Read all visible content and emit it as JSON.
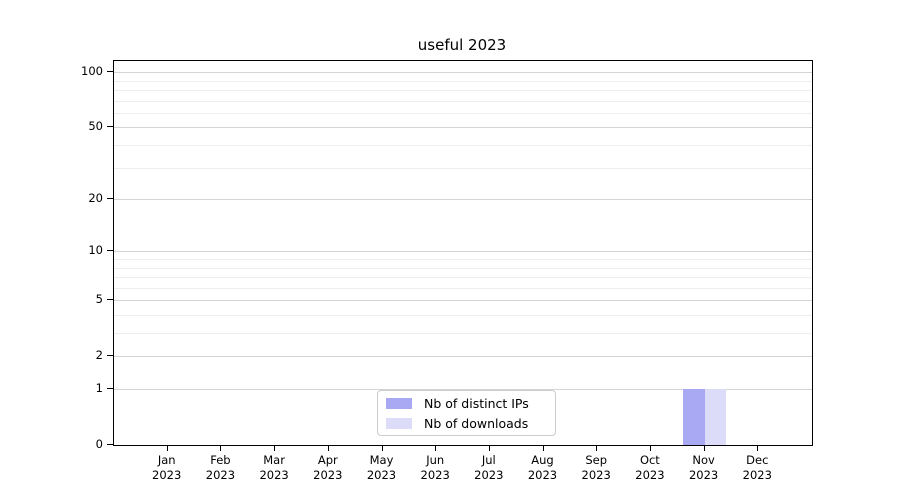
{
  "chart_data": {
    "type": "bar",
    "title": "useful 2023",
    "categories": [
      "Jan",
      "Feb",
      "Mar",
      "Apr",
      "May",
      "Jun",
      "Jul",
      "Aug",
      "Sep",
      "Oct",
      "Nov",
      "Dec"
    ],
    "x_tick_year": "2023",
    "series": [
      {
        "name": "Nb of distinct IPs",
        "color": "#a9a9f3",
        "values": [
          0,
          0,
          0,
          0,
          0,
          0,
          0,
          0,
          0,
          0,
          1,
          0
        ]
      },
      {
        "name": "Nb of downloads",
        "color": "#dcdcf8",
        "values": [
          0,
          0,
          0,
          0,
          0,
          0,
          0,
          0,
          0,
          0,
          1,
          0
        ]
      }
    ],
    "y_scale": "log1p",
    "y_ticks": [
      0,
      1,
      2,
      5,
      10,
      20,
      50,
      100
    ],
    "y_minor_ticks": [
      3,
      4,
      6,
      7,
      8,
      9,
      30,
      40,
      60,
      70,
      80,
      90
    ],
    "ylim": [
      0,
      115
    ],
    "xlabel": "",
    "ylabel": "",
    "grid": true,
    "legend_position": "lower center"
  },
  "colors": {
    "axis": "#000000",
    "grid_major": "#d4d4d4",
    "grid_minor": "#eeeeee",
    "legend_border": "#cccccc",
    "background": "#ffffff"
  }
}
